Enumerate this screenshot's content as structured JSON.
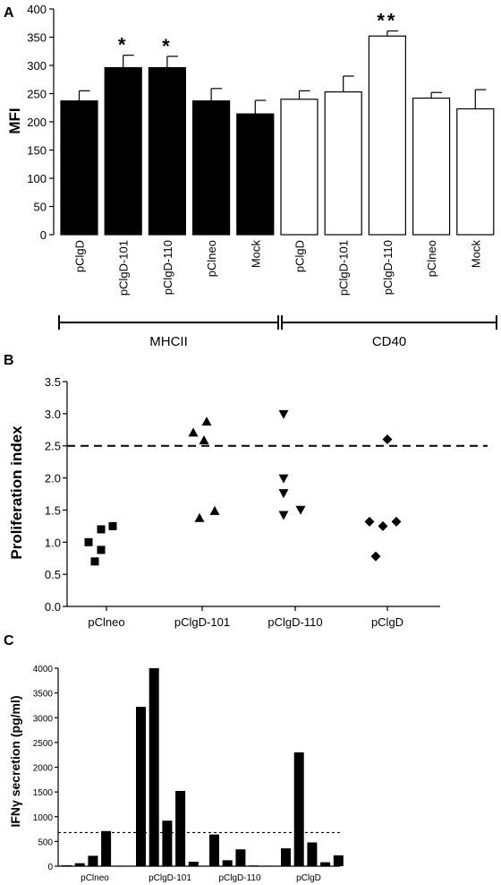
{
  "panels": {
    "a": {
      "label": "A"
    },
    "b": {
      "label": "B"
    },
    "c": {
      "label": "C"
    }
  },
  "chart_data": [
    {
      "type": "bar",
      "panel": "A",
      "ylabel": "MFI",
      "ylim": [
        0,
        400
      ],
      "yticks": [
        0,
        50,
        100,
        150,
        200,
        250,
        300,
        350,
        400
      ],
      "categories": [
        "pClgD",
        "pClgD-101",
        "pClgD-110",
        "pClneo",
        "Mock",
        "pClgD",
        "pClgD-101",
        "pClgD-110",
        "pClneo",
        "Mock"
      ],
      "values": [
        237,
        296,
        296,
        237,
        214,
        240,
        253,
        352,
        242,
        223
      ],
      "errors": [
        18,
        22,
        20,
        22,
        24,
        15,
        28,
        9,
        10,
        34
      ],
      "fill": [
        "black",
        "black",
        "black",
        "black",
        "black",
        "white",
        "white",
        "white",
        "white",
        "white"
      ],
      "annotations": [
        "",
        "*",
        "*",
        "",
        "",
        "",
        "",
        "**",
        "",
        ""
      ],
      "groups": [
        {
          "label": "MHCII",
          "from": 0,
          "to": 4
        },
        {
          "label": "CD40",
          "from": 5,
          "to": 9
        }
      ]
    },
    {
      "type": "scatter",
      "panel": "B",
      "ylabel": "Proliferation index",
      "ylim": [
        0.0,
        3.5
      ],
      "yticks": [
        "0.0",
        "0.5",
        "1.0",
        "1.5",
        "2.0",
        "2.5",
        "3.0",
        "3.5"
      ],
      "categories": [
        "pClneo",
        "pClgD-101",
        "pClgD-110",
        "pClgD"
      ],
      "threshold": 2.5,
      "series": [
        {
          "marker": "square",
          "points": [
            [
              -0.2,
              1.0
            ],
            [
              -0.06,
              1.2
            ],
            [
              0.07,
              1.25
            ],
            [
              -0.06,
              0.88
            ],
            [
              -0.13,
              0.7
            ]
          ]
        },
        {
          "marker": "triangle-up",
          "points": [
            [
              -0.1,
              2.7
            ],
            [
              0.05,
              2.87
            ],
            [
              0.02,
              2.58
            ],
            [
              0.14,
              1.48
            ],
            [
              -0.03,
              1.37
            ]
          ]
        },
        {
          "marker": "triangle-down",
          "points": [
            [
              -0.13,
              3.0
            ],
            [
              -0.13,
              2.0
            ],
            [
              -0.13,
              1.77
            ],
            [
              -0.13,
              1.43
            ],
            [
              0.06,
              1.51
            ]
          ]
        },
        {
          "marker": "diamond",
          "points": [
            [
              0.0,
              2.6
            ],
            [
              -0.2,
              1.32
            ],
            [
              -0.05,
              1.25
            ],
            [
              0.1,
              1.32
            ],
            [
              -0.13,
              0.78
            ]
          ]
        }
      ]
    },
    {
      "type": "bar",
      "panel": "C",
      "ylabel": "IFNγ secretion (pg/ml)",
      "ylim": [
        0,
        4000
      ],
      "yticks": [
        0,
        500,
        1000,
        1500,
        2000,
        2500,
        3000,
        3500,
        4000
      ],
      "categories": [
        "pClneo",
        "pClgD-101",
        "pClgD-110",
        "pClgD"
      ],
      "threshold": 680,
      "values": [
        [
          20,
          60,
          210,
          710,
          10
        ],
        [
          3220,
          4000,
          920,
          1520,
          90
        ],
        [
          640,
          120,
          340,
          15,
          10
        ],
        [
          360,
          2300,
          480,
          80,
          220
        ]
      ]
    }
  ]
}
